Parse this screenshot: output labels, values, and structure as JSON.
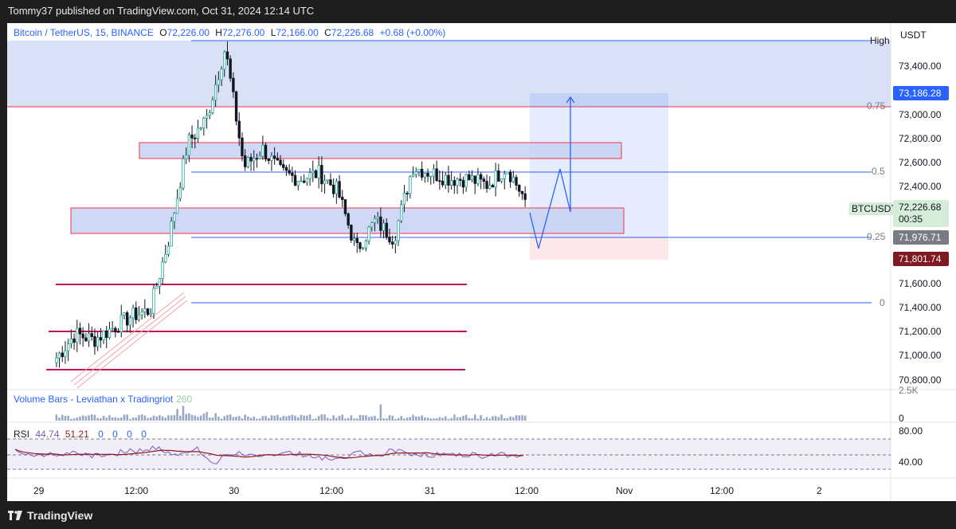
{
  "header": {
    "published_text": "Tommy37 published on TradingView.com, Oct 31, 2024 12:14 UTC"
  },
  "footer": {
    "brand": "TradingView"
  },
  "legend": {
    "symbol": "Bitcoin / TetherUS, 15, BINANCE",
    "o_label": "O",
    "o_value": "72,226.00",
    "h_label": "H",
    "h_value": "72,276.00",
    "l_label": "L",
    "l_value": "72,166.00",
    "c_label": "C",
    "c_value": "72,226.68",
    "change": "+0.68 (+0.00%)"
  },
  "currency": "USDT",
  "price_axis": {
    "ticks": [
      "73,400.00",
      "73,000.00",
      "72,800.00",
      "72,600.00",
      "72,400.00",
      "71,600.00",
      "71,400.00",
      "71,200.00",
      "71,000.00",
      "70,800.00"
    ],
    "badges": {
      "target": "73,186.28",
      "symbol": "BTCUSDT",
      "last": "72,226.68",
      "countdown": "00:35",
      "entry": "71,976.71",
      "stop": "71,801.74"
    }
  },
  "fib_labels": {
    "high": "High",
    "f075": "0.75",
    "f05": "0.5",
    "f025": "0.25",
    "f0": "0"
  },
  "time_axis": [
    "29",
    "12:00",
    "30",
    "12:00",
    "31",
    "12:00",
    "Nov",
    "12:00",
    "2"
  ],
  "volume_pane": {
    "title": "Volume Bars - Leviathan x Tradingriot",
    "value": "260",
    "axis_top": "2.5K",
    "axis_zero": "0"
  },
  "rsi_pane": {
    "label": "RSI",
    "v1": "44.74",
    "v2": "51.21",
    "extras": [
      "0",
      "0",
      "0",
      "0"
    ],
    "axis_upper": "80.00",
    "axis_lower": "40.00"
  },
  "colors": {
    "accent_blue": "#2962ff",
    "zone_red": "#f23645",
    "zone_fill": "#d3dcf6",
    "up": "#26a69a",
    "down": "#131722",
    "stop_badge": "#801922",
    "entry_badge": "#787b86"
  },
  "chart_data": {
    "type": "candlestick",
    "symbol": "BTCUSDT",
    "interval": "15",
    "ohlc_last": {
      "open": 72226.0,
      "high": 72276.0,
      "low": 72166.0,
      "close": 72226.68
    },
    "close_path": [
      {
        "t": "Oct 29 02:00",
        "p": 70900
      },
      {
        "t": "Oct 29 04:00",
        "p": 71100
      },
      {
        "t": "Oct 29 06:00",
        "p": 71050
      },
      {
        "t": "Oct 29 08:00",
        "p": 71150
      },
      {
        "t": "Oct 29 10:00",
        "p": 71250
      },
      {
        "t": "Oct 29 12:00",
        "p": 71300
      },
      {
        "t": "Oct 29 14:00",
        "p": 71900
      },
      {
        "t": "Oct 29 16:00",
        "p": 72700
      },
      {
        "t": "Oct 29 18:00",
        "p": 72900
      },
      {
        "t": "Oct 29 19:00",
        "p": 73500
      },
      {
        "t": "Oct 29 20:00",
        "p": 72500
      },
      {
        "t": "Oct 29 22:00",
        "p": 72650
      },
      {
        "t": "Oct 30 00:00",
        "p": 72450
      },
      {
        "t": "Oct 30 04:00",
        "p": 72400
      },
      {
        "t": "Oct 30 08:00",
        "p": 72450
      },
      {
        "t": "Oct 30 10:00",
        "p": 72300
      },
      {
        "t": "Oct 30 12:00",
        "p": 71800
      },
      {
        "t": "Oct 30 14:00",
        "p": 72050
      },
      {
        "t": "Oct 30 16:00",
        "p": 71900
      },
      {
        "t": "Oct 30 18:00",
        "p": 72500
      },
      {
        "t": "Oct 30 20:00",
        "p": 72450
      },
      {
        "t": "Oct 30 22:00",
        "p": 72400
      },
      {
        "t": "Oct 31 02:00",
        "p": 72400
      },
      {
        "t": "Oct 31 06:00",
        "p": 72350
      },
      {
        "t": "Oct 31 10:00",
        "p": 72500
      },
      {
        "t": "Oct 31 12:00",
        "p": 72226.68
      }
    ],
    "fib_levels": [
      {
        "label": "High",
        "price": 73530
      },
      {
        "label": "0.75",
        "price": 73120
      },
      {
        "label": "0.5",
        "price": 72530
      },
      {
        "label": "0.25",
        "price": 71950
      },
      {
        "label": "0",
        "price": 71425
      }
    ],
    "zones": [
      {
        "top": 72780,
        "bottom": 72640
      },
      {
        "top": 72280,
        "bottom": 71970
      }
    ],
    "support_lines": [
      71600,
      71200,
      70910
    ],
    "position": {
      "entry": 71976.71,
      "target": 73186.28,
      "stop": 71801.74
    },
    "projection_path": [
      72226.68,
      71850,
      72550,
      72270,
      73150
    ],
    "y_axis_range": [
      70700,
      73650
    ]
  }
}
